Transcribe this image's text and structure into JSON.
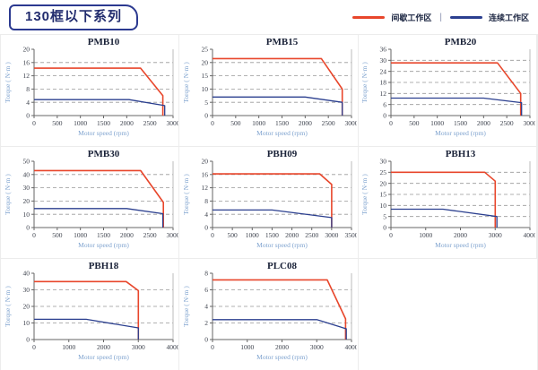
{
  "header": {
    "title": "130框以下系列",
    "legend_separator": "|",
    "legend": [
      {
        "label": "间歇工作区",
        "color": "#E8462B"
      },
      {
        "label": "连续工作区",
        "color": "#2B3F8F"
      }
    ]
  },
  "colors": {
    "intermittent": "#E8462B",
    "continuous": "#2B3F8F",
    "grid_dash": "#999999",
    "axis": "#666666",
    "axis_light": "#BBBBBB",
    "panel_border": "#ECECEC",
    "title_box_border": "#2B3990",
    "title_box_text": "#222C6E"
  },
  "chart_data": [
    {
      "type": "line",
      "title": "PMB10",
      "xlabel": "Motor speed (rpm)",
      "ylabel": "Torque ( N·m )",
      "xlim": [
        0,
        3000
      ],
      "xticks": [
        0,
        500,
        1000,
        1500,
        2000,
        2500,
        3000
      ],
      "ylim": [
        0,
        20
      ],
      "yticks": [
        0,
        4,
        8,
        12,
        16,
        20
      ],
      "grid": true,
      "legend_position": "none",
      "series": [
        {
          "name": "间歇工作区",
          "color": "#E8462B",
          "points": [
            [
              0,
              14.3
            ],
            [
              2300,
              14.3
            ],
            [
              2780,
              6
            ],
            [
              2780,
              0
            ]
          ]
        },
        {
          "name": "连续工作区",
          "color": "#2B3F8F",
          "points": [
            [
              0,
              4.8
            ],
            [
              2050,
              4.8
            ],
            [
              2820,
              3
            ],
            [
              2820,
              0
            ]
          ]
        }
      ]
    },
    {
      "type": "line",
      "title": "PMB15",
      "xlabel": "Motor speed (rpm)",
      "ylabel": "Torque ( N·m )",
      "xlim": [
        0,
        3000
      ],
      "xticks": [
        0,
        500,
        1000,
        1500,
        2000,
        2500,
        3000
      ],
      "ylim": [
        0,
        25
      ],
      "yticks": [
        0,
        5,
        10,
        15,
        20,
        25
      ],
      "grid": true,
      "legend_position": "none",
      "series": [
        {
          "name": "间歇工作区",
          "color": "#E8462B",
          "points": [
            [
              0,
              21.5
            ],
            [
              2350,
              21.5
            ],
            [
              2800,
              10
            ],
            [
              2800,
              0
            ]
          ]
        },
        {
          "name": "连续工作区",
          "color": "#2B3F8F",
          "points": [
            [
              0,
              7
            ],
            [
              2000,
              7
            ],
            [
              2800,
              5
            ],
            [
              2800,
              0
            ]
          ]
        }
      ]
    },
    {
      "type": "line",
      "title": "PMB20",
      "xlabel": "Motor speed (rpm)",
      "ylabel": "Torque ( N·m )",
      "xlim": [
        0,
        3000
      ],
      "xticks": [
        0,
        500,
        1000,
        1500,
        2000,
        2500,
        3000
      ],
      "ylim": [
        0,
        36
      ],
      "yticks": [
        0,
        6,
        12,
        18,
        24,
        30,
        36
      ],
      "grid": true,
      "legend_position": "none",
      "series": [
        {
          "name": "间歇工作区",
          "color": "#E8462B",
          "points": [
            [
              0,
              28.6
            ],
            [
              2300,
              28.6
            ],
            [
              2800,
              12
            ],
            [
              2800,
              0
            ]
          ]
        },
        {
          "name": "连续工作区",
          "color": "#2B3F8F",
          "points": [
            [
              0,
              9.5
            ],
            [
              2000,
              9.5
            ],
            [
              2820,
              7
            ],
            [
              2820,
              0
            ]
          ]
        }
      ]
    },
    {
      "type": "line",
      "title": "PMB30",
      "xlabel": "Motor speed (rpm)",
      "ylabel": "Torque ( N·m )",
      "xlim": [
        0,
        3000
      ],
      "xticks": [
        0,
        500,
        1000,
        1500,
        2000,
        2500,
        3000
      ],
      "ylim": [
        0,
        50
      ],
      "yticks": [
        0,
        10,
        20,
        30,
        40,
        50
      ],
      "grid": true,
      "legend_position": "none",
      "series": [
        {
          "name": "间歇工作区",
          "color": "#E8462B",
          "points": [
            [
              0,
              43
            ],
            [
              2300,
              43
            ],
            [
              2790,
              19
            ],
            [
              2790,
              0
            ]
          ]
        },
        {
          "name": "连续工作区",
          "color": "#2B3F8F",
          "points": [
            [
              0,
              14.3
            ],
            [
              2000,
              14.3
            ],
            [
              2780,
              10.5
            ],
            [
              2780,
              0
            ]
          ]
        }
      ]
    },
    {
      "type": "line",
      "title": "PBH09",
      "xlabel": "Motor speed (rpm)",
      "ylabel": "Torque ( N·m )",
      "xlim": [
        0,
        3500
      ],
      "xticks": [
        0,
        500,
        1000,
        1500,
        2000,
        2500,
        3000,
        3500
      ],
      "ylim": [
        0,
        20
      ],
      "yticks": [
        0,
        4,
        8,
        12,
        16,
        20
      ],
      "grid": true,
      "legend_position": "none",
      "series": [
        {
          "name": "间歇工作区",
          "color": "#E8462B",
          "points": [
            [
              0,
              16.2
            ],
            [
              2700,
              16.2
            ],
            [
              3000,
              13
            ],
            [
              3000,
              0
            ]
          ]
        },
        {
          "name": "连续工作区",
          "color": "#2B3F8F",
          "points": [
            [
              0,
              5.3
            ],
            [
              1500,
              5.3
            ],
            [
              3000,
              3
            ],
            [
              3000,
              0
            ]
          ]
        }
      ]
    },
    {
      "type": "line",
      "title": "PBH13",
      "xlabel": "Motor speed (rpm)",
      "ylabel": "Torque ( N·m )",
      "xlim": [
        0,
        4000
      ],
      "xticks": [
        0,
        1000,
        2000,
        3000,
        4000
      ],
      "ylim": [
        0,
        30
      ],
      "yticks": [
        0,
        5,
        10,
        15,
        20,
        25,
        30
      ],
      "grid": true,
      "legend_position": "none",
      "series": [
        {
          "name": "间歇工作区",
          "color": "#E8462B",
          "points": [
            [
              0,
              25
            ],
            [
              2700,
              25
            ],
            [
              3000,
              21
            ],
            [
              3000,
              0
            ]
          ]
        },
        {
          "name": "连续工作区",
          "color": "#2B3F8F",
          "points": [
            [
              0,
              8.3
            ],
            [
              1500,
              8.3
            ],
            [
              3050,
              5
            ],
            [
              3050,
              0
            ]
          ]
        }
      ]
    },
    {
      "type": "line",
      "title": "PBH18",
      "xlabel": "Motor speed (rpm)",
      "ylabel": "Torque ( N·m )",
      "xlim": [
        0,
        4000
      ],
      "xticks": [
        0,
        1000,
        2000,
        3000,
        4000
      ],
      "ylim": [
        0,
        40
      ],
      "yticks": [
        0,
        10,
        20,
        30,
        40
      ],
      "grid": true,
      "legend_position": "none",
      "series": [
        {
          "name": "间歇工作区",
          "color": "#E8462B",
          "points": [
            [
              0,
              35
            ],
            [
              2650,
              35
            ],
            [
              3000,
              29.5
            ],
            [
              3000,
              0
            ]
          ]
        },
        {
          "name": "连续工作区",
          "color": "#2B3F8F",
          "points": [
            [
              0,
              12.2
            ],
            [
              1500,
              12.2
            ],
            [
              3000,
              7
            ],
            [
              3000,
              0
            ]
          ]
        }
      ]
    },
    {
      "type": "line",
      "title": "PLC08",
      "xlabel": "Motor speed (rpm)",
      "ylabel": "Torque ( N·m )",
      "xlim": [
        0,
        4000
      ],
      "xticks": [
        0,
        1000,
        2000,
        3000,
        4000
      ],
      "ylim": [
        0,
        8
      ],
      "yticks": [
        0,
        2,
        4,
        6,
        8
      ],
      "grid": true,
      "legend_position": "none",
      "series": [
        {
          "name": "间歇工作区",
          "color": "#E8462B",
          "points": [
            [
              0,
              7.2
            ],
            [
              3300,
              7.2
            ],
            [
              3830,
              2.5
            ],
            [
              3830,
              0
            ]
          ]
        },
        {
          "name": "连续工作区",
          "color": "#2B3F8F",
          "points": [
            [
              0,
              2.4
            ],
            [
              3000,
              2.4
            ],
            [
              3850,
              1.3
            ],
            [
              3850,
              0
            ]
          ]
        }
      ]
    }
  ]
}
